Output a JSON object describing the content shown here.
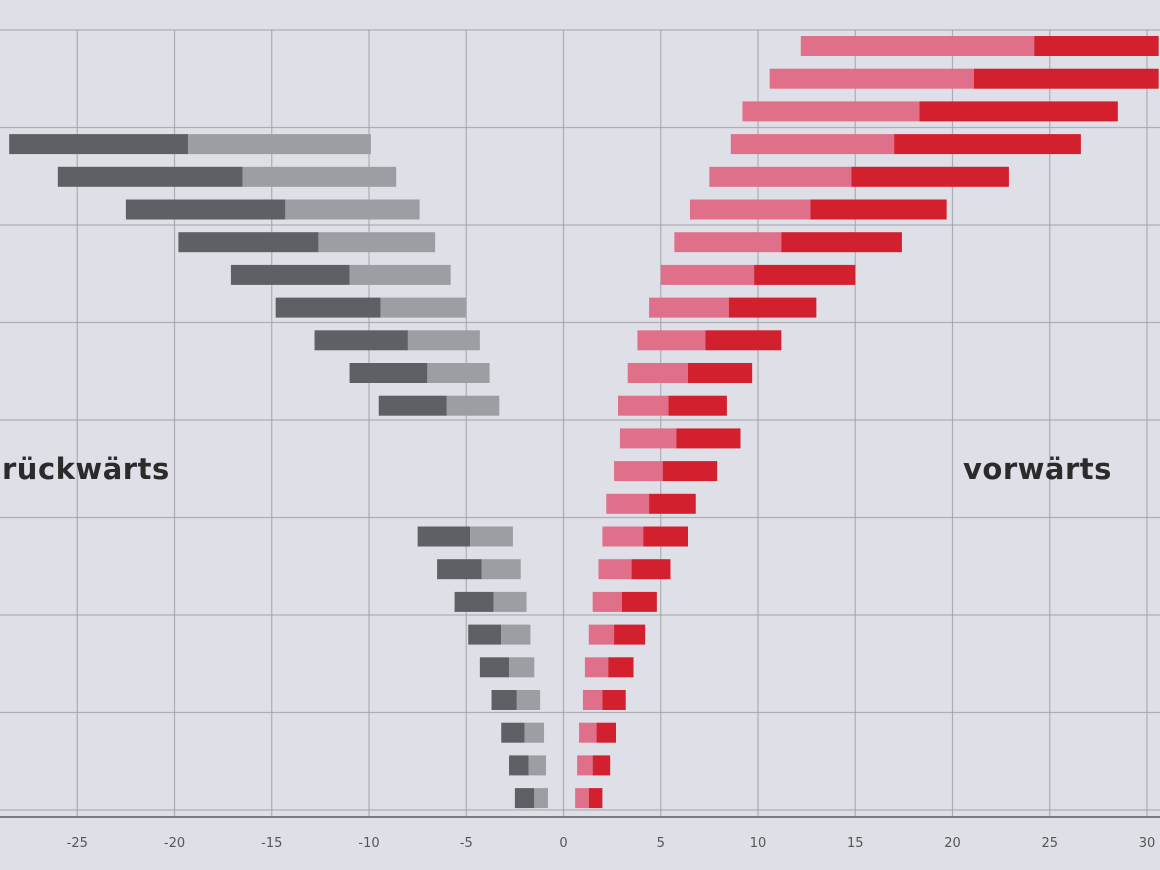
{
  "labels": {
    "backward": "rückwärts",
    "forward": "vorwärts"
  },
  "colors": {
    "background": "#dfe0e7",
    "grid": "#9c9ca4",
    "axis": "#7a7a82",
    "backward_dark": "#5f6065",
    "backward_light": "#9d9ea4",
    "forward_light": "#e0708a",
    "forward_dark": "#d2202e"
  },
  "chart_data": {
    "type": "bar",
    "orientation": "horizontal",
    "stacked": true,
    "xlim": [
      -28.5,
      30.6
    ],
    "xticks": [
      -25,
      -20,
      -15,
      -10,
      -5,
      0,
      5,
      10,
      15,
      20,
      25,
      30
    ],
    "xtick_labels": [
      "-25",
      "-20",
      "-15",
      "-10",
      "-5",
      "0",
      "5",
      "10",
      "15",
      "20",
      "25",
      "30"
    ],
    "grid": true,
    "rows": [
      {
        "backward": null,
        "forward": [
          12.2,
          24.2,
          30.6
        ]
      },
      {
        "backward": null,
        "forward": [
          10.6,
          21.1,
          30.6
        ]
      },
      {
        "backward": null,
        "forward": [
          9.2,
          18.3,
          28.5
        ]
      },
      {
        "backward": [
          -28.5,
          -19.3,
          -9.9
        ],
        "forward": [
          8.6,
          17.0,
          26.6
        ]
      },
      {
        "backward": [
          -26.0,
          -16.5,
          -8.6
        ],
        "forward": [
          7.5,
          14.8,
          22.9
        ]
      },
      {
        "backward": [
          -22.5,
          -14.3,
          -7.4
        ],
        "forward": [
          6.5,
          12.7,
          19.7
        ]
      },
      {
        "backward": [
          -19.8,
          -12.6,
          -6.6
        ],
        "forward": [
          5.7,
          11.2,
          17.4
        ]
      },
      {
        "backward": [
          -17.1,
          -11.0,
          -5.8
        ],
        "forward": [
          5.0,
          9.8,
          15.0
        ]
      },
      {
        "backward": [
          -14.8,
          -9.4,
          -5.0
        ],
        "forward": [
          4.4,
          8.5,
          13.0
        ]
      },
      {
        "backward": [
          -12.8,
          -8.0,
          -4.3
        ],
        "forward": [
          3.8,
          7.3,
          11.2
        ]
      },
      {
        "backward": [
          -11.0,
          -7.0,
          -3.8
        ],
        "forward": [
          3.3,
          6.4,
          9.7
        ]
      },
      {
        "backward": [
          -9.5,
          -6.0,
          -3.3
        ],
        "forward": [
          2.8,
          5.4,
          8.4
        ]
      },
      {
        "backward": null,
        "forward": [
          2.9,
          5.8,
          9.1
        ]
      },
      {
        "backward": null,
        "forward": [
          2.6,
          5.1,
          7.9
        ]
      },
      {
        "backward": null,
        "forward": [
          2.2,
          4.4,
          6.8
        ]
      },
      {
        "backward": [
          -7.5,
          -4.8,
          -2.6
        ],
        "forward": [
          2.0,
          4.1,
          6.4
        ]
      },
      {
        "backward": [
          -6.5,
          -4.2,
          -2.2
        ],
        "forward": [
          1.8,
          3.5,
          5.5
        ]
      },
      {
        "backward": [
          -5.6,
          -3.6,
          -1.9
        ],
        "forward": [
          1.5,
          3.0,
          4.8
        ]
      },
      {
        "backward": [
          -4.9,
          -3.2,
          -1.7
        ],
        "forward": [
          1.3,
          2.6,
          4.2
        ]
      },
      {
        "backward": [
          -4.3,
          -2.8,
          -1.5
        ],
        "forward": [
          1.1,
          2.3,
          3.6
        ]
      },
      {
        "backward": [
          -3.7,
          -2.4,
          -1.2
        ],
        "forward": [
          1.0,
          2.0,
          3.2
        ]
      },
      {
        "backward": [
          -3.2,
          -2.0,
          -1.0
        ],
        "forward": [
          0.8,
          1.7,
          2.7
        ]
      },
      {
        "backward": [
          -2.8,
          -1.8,
          -0.9
        ],
        "forward": [
          0.7,
          1.5,
          2.4
        ]
      },
      {
        "backward": [
          -2.5,
          -1.5,
          -0.8
        ],
        "forward": [
          0.6,
          1.3,
          2.0
        ]
      }
    ]
  }
}
